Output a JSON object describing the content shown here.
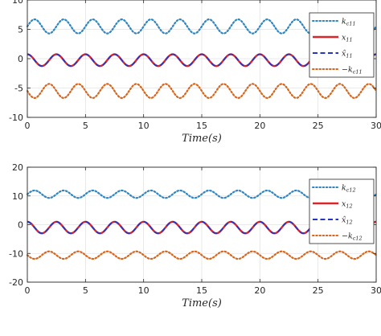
{
  "chart_data": [
    {
      "type": "line",
      "title": "",
      "xlabel": "Time(s)",
      "ylabel": "",
      "xlim": [
        0,
        30
      ],
      "ylim": [
        -10,
        10
      ],
      "xticks": [
        0,
        5,
        10,
        15,
        20,
        25,
        30
      ],
      "yticks": [
        -10,
        -5,
        0,
        5,
        10
      ],
      "grid": true,
      "legend_position": "top-right",
      "series": [
        {
          "name": "k_c11",
          "legend_main": "k",
          "legend_sub": "c11",
          "color": "#2f86c0",
          "style": "dotted",
          "waveform": "sine",
          "amplitude": 1.2,
          "period": 2.5,
          "offset": 5.5,
          "phase_deg": 0
        },
        {
          "name": "x_11",
          "legend_main": "x",
          "legend_sub": "11",
          "color": "#d9262b",
          "style": "solid",
          "waveform": "sine",
          "amplitude": 1.0,
          "period": 2.5,
          "offset": -0.25,
          "phase_deg": 90
        },
        {
          "name": "x̂_11",
          "legend_main": "x̂",
          "legend_sub": "11",
          "color": "#2336c8",
          "style": "dashed",
          "waveform": "sine",
          "amplitude": 1.0,
          "period": 2.5,
          "offset": -0.25,
          "phase_deg": 90
        },
        {
          "name": "−k_c11",
          "legend_main": "−k",
          "legend_sub": "c11",
          "color": "#d8661c",
          "style": "dotted",
          "waveform": "sine",
          "amplitude": 1.2,
          "period": 2.5,
          "offset": -5.5,
          "phase_deg": 180
        }
      ]
    },
    {
      "type": "line",
      "title": "",
      "xlabel": "Time(s)",
      "ylabel": "",
      "xlim": [
        0,
        30
      ],
      "ylim": [
        -20,
        20
      ],
      "xticks": [
        0,
        5,
        10,
        15,
        20,
        25,
        30
      ],
      "yticks": [
        -20,
        -10,
        0,
        10,
        20
      ],
      "grid": true,
      "legend_position": "top-right",
      "series": [
        {
          "name": "k_c12",
          "legend_main": "k",
          "legend_sub": "c12",
          "color": "#2f86c0",
          "style": "dotted",
          "waveform": "sine",
          "amplitude": 1.3,
          "period": 2.5,
          "offset": 10.6,
          "phase_deg": 0
        },
        {
          "name": "x_12",
          "legend_main": "x",
          "legend_sub": "12",
          "color": "#d9262b",
          "style": "solid",
          "waveform": "sine",
          "amplitude": 2.0,
          "period": 2.5,
          "offset": -1.0,
          "phase_deg": 90
        },
        {
          "name": "x̂_12",
          "legend_main": "x̂",
          "legend_sub": "12",
          "color": "#2336c8",
          "style": "dashed",
          "waveform": "sine",
          "amplitude": 2.0,
          "period": 2.5,
          "offset": -1.0,
          "phase_deg": 90
        },
        {
          "name": "−k_c12",
          "legend_main": "−k",
          "legend_sub": "c12",
          "color": "#d8661c",
          "style": "dotted",
          "waveform": "sine",
          "amplitude": 1.3,
          "period": 2.5,
          "offset": -10.6,
          "phase_deg": 180
        }
      ]
    }
  ]
}
